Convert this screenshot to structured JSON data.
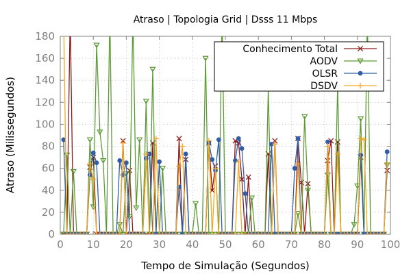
{
  "chart_data": {
    "type": "line",
    "title": "Atraso | Topologia Grid | Dsss 11 Mbps",
    "xlabel": "Tempo de Simulação (Segundos)",
    "ylabel": "Atraso (Milissegundos)",
    "xlim": [
      0,
      100
    ],
    "ylim": [
      0,
      180
    ],
    "xticks": [
      0,
      10,
      20,
      30,
      40,
      50,
      60,
      70,
      80,
      90,
      100
    ],
    "yticks": [
      0,
      20,
      40,
      60,
      80,
      100,
      120,
      140,
      160,
      180
    ],
    "grid": true,
    "legend_position": "top-right",
    "series": [
      {
        "name": "Conhecimento Total",
        "color": "#8b1a1a",
        "marker": "x",
        "x": [
          1,
          2,
          3,
          4,
          5,
          6,
          7,
          8,
          9,
          10,
          11,
          12,
          13,
          14,
          15,
          16,
          17,
          18,
          19,
          20,
          21,
          22,
          23,
          24,
          25,
          26,
          27,
          28,
          29,
          30,
          31,
          32,
          33,
          34,
          35,
          36,
          37,
          38,
          39,
          40,
          41,
          42,
          43,
          44,
          45,
          46,
          47,
          48,
          49,
          50,
          51,
          52,
          53,
          54,
          55,
          56,
          57,
          58,
          59,
          60,
          61,
          62,
          63,
          64,
          65,
          66,
          67,
          68,
          69,
          70,
          71,
          72,
          73,
          74,
          75,
          76,
          77,
          78,
          79,
          80,
          81,
          82,
          83,
          84,
          85,
          86,
          87,
          88,
          89,
          90,
          91,
          92,
          93,
          94,
          95,
          96,
          97,
          98,
          99
        ],
        "y": [
          0,
          0,
          200,
          0,
          0,
          0,
          0,
          0,
          61,
          70,
          0,
          0,
          0,
          0,
          0,
          0,
          0,
          0,
          85,
          0,
          58,
          0,
          0,
          0,
          0,
          0,
          0,
          83,
          0,
          0,
          0,
          0,
          0,
          0,
          0,
          87,
          0,
          68,
          0,
          0,
          0,
          0,
          0,
          0,
          83,
          40,
          62,
          0,
          0,
          0,
          0,
          0,
          85,
          83,
          50,
          0,
          52,
          0,
          0,
          0,
          0,
          0,
          73,
          0,
          85,
          0,
          0,
          0,
          0,
          0,
          0,
          87,
          47,
          0,
          46,
          0,
          0,
          0,
          0,
          0,
          67,
          85,
          0,
          84,
          0,
          0,
          0,
          0,
          0,
          0,
          70,
          0,
          0,
          0,
          0,
          0,
          0,
          0,
          58
        ]
      },
      {
        "name": "AODV",
        "color": "#5b9a35",
        "marker": "triangle-down",
        "x": [
          1,
          2,
          3,
          4,
          5,
          6,
          7,
          8,
          9,
          10,
          11,
          12,
          13,
          14,
          15,
          16,
          17,
          18,
          19,
          20,
          21,
          22,
          23,
          24,
          25,
          26,
          27,
          28,
          29,
          30,
          31,
          32,
          33,
          34,
          35,
          36,
          37,
          38,
          39,
          40,
          41,
          42,
          43,
          44,
          45,
          46,
          47,
          48,
          49,
          50,
          51,
          52,
          53,
          54,
          55,
          56,
          57,
          58,
          59,
          60,
          61,
          62,
          63,
          64,
          65,
          66,
          67,
          68,
          69,
          70,
          71,
          72,
          73,
          74,
          75,
          76,
          77,
          78,
          79,
          80,
          81,
          82,
          83,
          84,
          85,
          86,
          87,
          88,
          89,
          90,
          91,
          92,
          93,
          94,
          95,
          96,
          97,
          98,
          99
        ],
        "y": [
          0,
          72,
          0,
          57,
          0,
          0,
          0,
          0,
          86,
          25,
          172,
          93,
          67,
          0,
          200,
          0,
          0,
          9,
          0,
          55,
          16,
          200,
          24,
          86,
          0,
          121,
          0,
          150,
          0,
          0,
          60,
          0,
          0,
          0,
          0,
          0,
          0,
          0,
          0,
          0,
          28,
          0,
          0,
          160,
          0,
          0,
          0,
          0,
          200,
          0,
          0,
          0,
          0,
          0,
          0,
          0,
          0,
          33,
          0,
          0,
          0,
          0,
          132,
          0,
          0,
          0,
          0,
          0,
          0,
          0,
          0,
          19,
          0,
          107,
          40,
          0,
          0,
          0,
          0,
          0,
          54,
          0,
          0,
          135,
          0,
          0,
          0,
          0,
          9,
          44,
          105,
          0,
          200,
          0,
          0,
          0,
          0,
          0,
          63
        ]
      },
      {
        "name": "OLSR",
        "color": "#2f5da8",
        "marker": "circle",
        "x": [
          1,
          2,
          3,
          4,
          5,
          6,
          7,
          8,
          9,
          10,
          11,
          12,
          13,
          14,
          15,
          16,
          17,
          18,
          19,
          20,
          21,
          22,
          23,
          24,
          25,
          26,
          27,
          28,
          29,
          30,
          31,
          32,
          33,
          34,
          35,
          36,
          37,
          38,
          39,
          40,
          41,
          42,
          43,
          44,
          45,
          46,
          47,
          48,
          49,
          50,
          51,
          52,
          53,
          54,
          55,
          56,
          57,
          58,
          59,
          60,
          61,
          62,
          63,
          64,
          65,
          66,
          67,
          68,
          69,
          70,
          71,
          72,
          73,
          74,
          75,
          76,
          77,
          78,
          79,
          80,
          81,
          82,
          83,
          84,
          85,
          86,
          87,
          88,
          89,
          90,
          91,
          92,
          93,
          94,
          95,
          96,
          97,
          98,
          99
        ],
        "y": [
          86,
          0,
          0,
          0,
          0,
          0,
          0,
          0,
          54,
          74,
          65,
          0,
          0,
          0,
          0,
          0,
          0,
          67,
          54,
          65,
          0,
          0,
          0,
          0,
          0,
          69,
          73,
          0,
          0,
          66,
          0,
          0,
          0,
          0,
          0,
          43,
          0,
          73,
          0,
          0,
          0,
          0,
          0,
          0,
          83,
          68,
          58,
          86,
          0,
          0,
          0,
          0,
          67,
          87,
          78,
          37,
          0,
          0,
          0,
          0,
          0,
          0,
          0,
          82,
          0,
          0,
          0,
          0,
          0,
          0,
          60,
          87,
          0,
          0,
          0,
          0,
          0,
          0,
          0,
          0,
          84,
          0,
          0,
          0,
          0,
          0,
          0,
          0,
          0,
          0,
          72,
          0,
          0,
          0,
          0,
          0,
          0,
          0,
          75
        ]
      },
      {
        "name": "DSDV",
        "color": "#f5a623",
        "marker": "plus",
        "x": [
          1,
          2,
          3,
          4,
          5,
          6,
          7,
          8,
          9,
          10,
          11,
          12,
          13,
          14,
          15,
          16,
          17,
          18,
          19,
          20,
          21,
          22,
          23,
          24,
          25,
          26,
          27,
          28,
          29,
          30,
          31,
          32,
          33,
          34,
          35,
          36,
          37,
          38,
          39,
          40,
          41,
          42,
          43,
          44,
          45,
          46,
          47,
          48,
          49,
          50,
          51,
          52,
          53,
          54,
          55,
          56,
          57,
          58,
          59,
          60,
          61,
          62,
          63,
          64,
          65,
          66,
          67,
          68,
          69,
          70,
          71,
          72,
          73,
          74,
          75,
          76,
          77,
          78,
          79,
          80,
          81,
          82,
          83,
          84,
          85,
          86,
          87,
          88,
          89,
          90,
          91,
          92,
          93,
          94,
          95,
          96,
          97,
          98,
          99
        ],
        "y": [
          200,
          0,
          0,
          0,
          0,
          0,
          0,
          0,
          64,
          50,
          0,
          0,
          0,
          0,
          0,
          0,
          0,
          0,
          83,
          0,
          0,
          0,
          0,
          0,
          0,
          73,
          0,
          0,
          87,
          0,
          0,
          0,
          0,
          0,
          0,
          62,
          80,
          0,
          0,
          0,
          0,
          0,
          0,
          0,
          85,
          0,
          60,
          0,
          0,
          0,
          0,
          0,
          0,
          66,
          0,
          0,
          0,
          0,
          0,
          0,
          0,
          0,
          0,
          0,
          82,
          0,
          0,
          0,
          0,
          0,
          0,
          64,
          0,
          0,
          0,
          0,
          0,
          0,
          0,
          0,
          80,
          0,
          0,
          73,
          0,
          0,
          0,
          0,
          0,
          0,
          87,
          86,
          0,
          0,
          0,
          0,
          0,
          0,
          64
        ]
      }
    ]
  }
}
